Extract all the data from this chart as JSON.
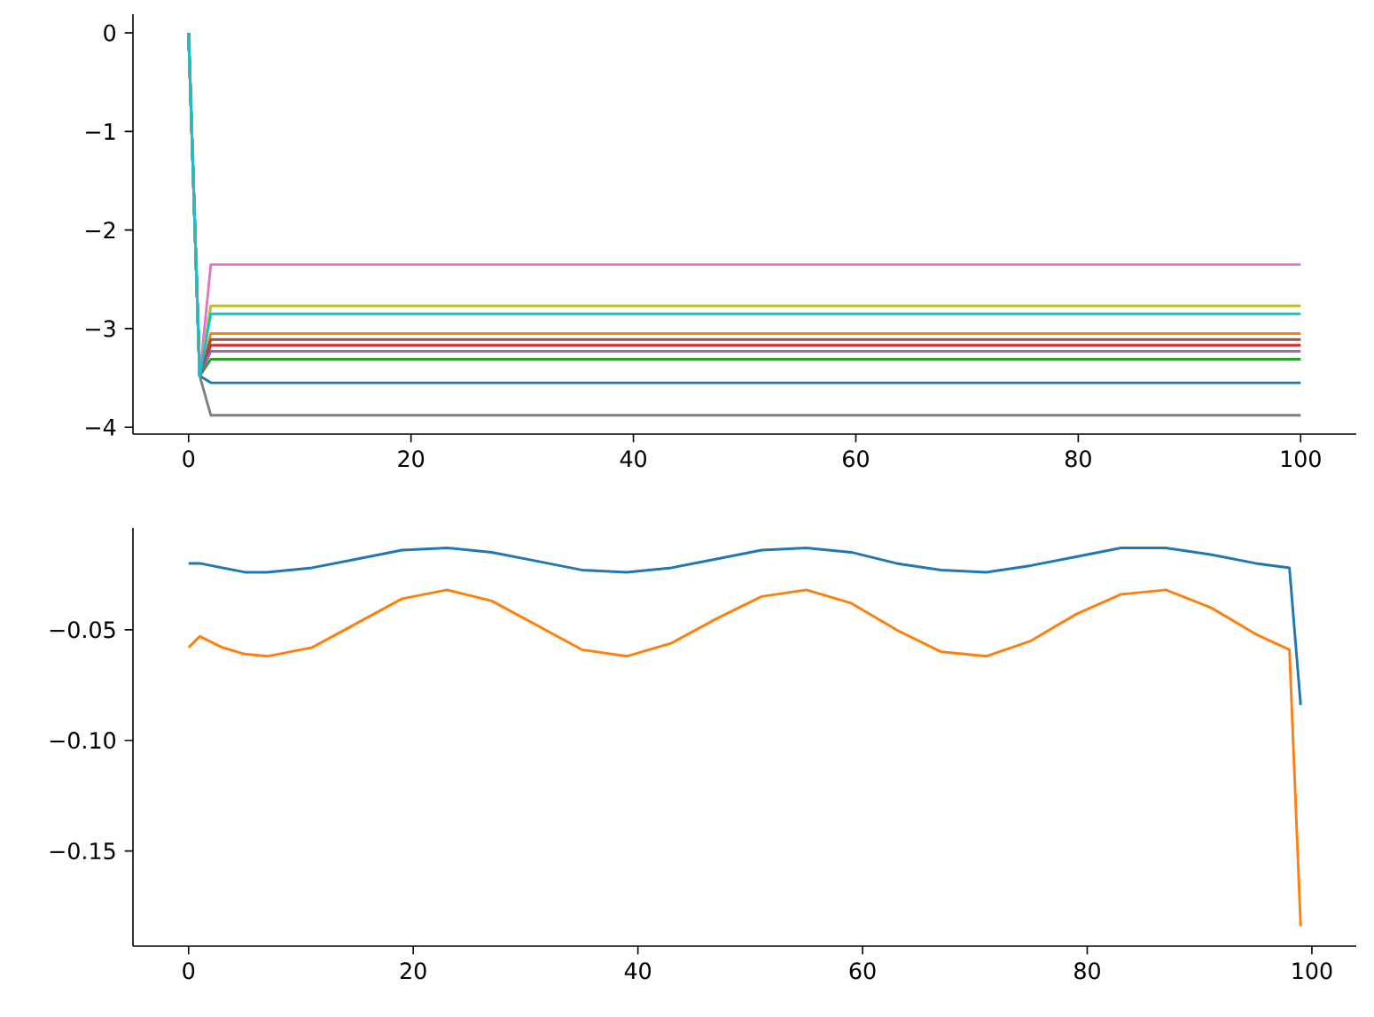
{
  "chart_data": [
    {
      "type": "line",
      "xlim": [
        -5,
        105
      ],
      "ylim": [
        -4.07,
        0.19
      ],
      "xticks": [
        0,
        20,
        40,
        60,
        80,
        100
      ],
      "yticks": [
        {
          "value": -4,
          "label": "−4"
        },
        {
          "value": -3,
          "label": "−3"
        },
        {
          "value": -2,
          "label": "−2"
        },
        {
          "value": -1,
          "label": "−1"
        },
        0
      ],
      "grid": false,
      "marker": "none",
      "line_style": "solid",
      "series": [
        {
          "color": "#1f77b4",
          "x": [
            0,
            1,
            2,
            100
          ],
          "values": [
            0,
            -3.48,
            -3.55,
            -3.55
          ]
        },
        {
          "color": "#ff7f0e",
          "x": [
            0,
            1,
            2,
            100
          ],
          "values": [
            0,
            -3.48,
            -3.05,
            -3.05
          ]
        },
        {
          "color": "#2ca02c",
          "x": [
            0,
            1,
            2,
            100
          ],
          "values": [
            0,
            -3.48,
            -3.31,
            -3.31
          ]
        },
        {
          "color": "#d62728",
          "x": [
            0,
            1,
            2,
            100
          ],
          "values": [
            0,
            -3.48,
            -3.17,
            -3.17
          ]
        },
        {
          "color": "#9467bd",
          "x": [
            0,
            1,
            2,
            100
          ],
          "values": [
            0,
            -3.48,
            -3.23,
            -3.23
          ]
        },
        {
          "color": "#8c564b",
          "x": [
            0,
            1,
            2,
            100
          ],
          "values": [
            0,
            -3.48,
            -3.11,
            -3.11
          ]
        },
        {
          "color": "#e377c2",
          "x": [
            0,
            1,
            2,
            100
          ],
          "values": [
            0,
            -3.48,
            -2.35,
            -2.35
          ]
        },
        {
          "color": "#7f7f7f",
          "x": [
            0,
            1,
            2,
            100
          ],
          "values": [
            0,
            -3.48,
            -3.88,
            -3.88
          ]
        },
        {
          "color": "#bcbd22",
          "x": [
            0,
            1,
            2,
            100
          ],
          "values": [
            0,
            -3.48,
            -2.77,
            -2.77
          ]
        },
        {
          "color": "#17becf",
          "x": [
            0,
            1,
            2,
            100
          ],
          "values": [
            0,
            -3.48,
            -2.85,
            -2.85
          ]
        }
      ]
    },
    {
      "type": "line",
      "xlim": [
        -4.95,
        103.95
      ],
      "ylim": [
        -0.193,
        -0.004
      ],
      "xticks": [
        0,
        20,
        40,
        60,
        80,
        100
      ],
      "yticks": [
        {
          "value": -0.15,
          "label": "−0.15"
        },
        {
          "value": -0.1,
          "label": "−0.10"
        },
        {
          "value": -0.05,
          "label": "−0.05"
        }
      ],
      "grid": false,
      "marker": "none",
      "line_style": "solid",
      "series": [
        {
          "color": "#1f77b4",
          "x": [
            0,
            1,
            3,
            5,
            7,
            11,
            15,
            19,
            23,
            27,
            31,
            35,
            39,
            43,
            47,
            51,
            55,
            59,
            63,
            67,
            71,
            75,
            79,
            83,
            87,
            91,
            95,
            98,
            99
          ],
          "values": [
            -0.02,
            -0.02,
            -0.022,
            -0.024,
            -0.024,
            -0.022,
            -0.018,
            -0.014,
            -0.013,
            -0.015,
            -0.019,
            -0.023,
            -0.024,
            -0.022,
            -0.018,
            -0.014,
            -0.013,
            -0.015,
            -0.02,
            -0.023,
            -0.024,
            -0.021,
            -0.017,
            -0.013,
            -0.013,
            -0.016,
            -0.02,
            -0.022,
            -0.084
          ]
        },
        {
          "color": "#ff7f0e",
          "x": [
            0,
            1,
            3,
            5,
            7,
            11,
            15,
            19,
            23,
            27,
            31,
            35,
            39,
            43,
            47,
            51,
            55,
            59,
            63,
            67,
            71,
            75,
            79,
            83,
            87,
            91,
            95,
            98,
            99
          ],
          "values": [
            -0.058,
            -0.053,
            -0.058,
            -0.061,
            -0.062,
            -0.058,
            -0.047,
            -0.036,
            -0.032,
            -0.037,
            -0.048,
            -0.059,
            -0.062,
            -0.056,
            -0.045,
            -0.035,
            -0.032,
            -0.038,
            -0.05,
            -0.06,
            -0.062,
            -0.055,
            -0.043,
            -0.034,
            -0.032,
            -0.04,
            -0.052,
            -0.059,
            -0.184
          ]
        }
      ]
    }
  ]
}
